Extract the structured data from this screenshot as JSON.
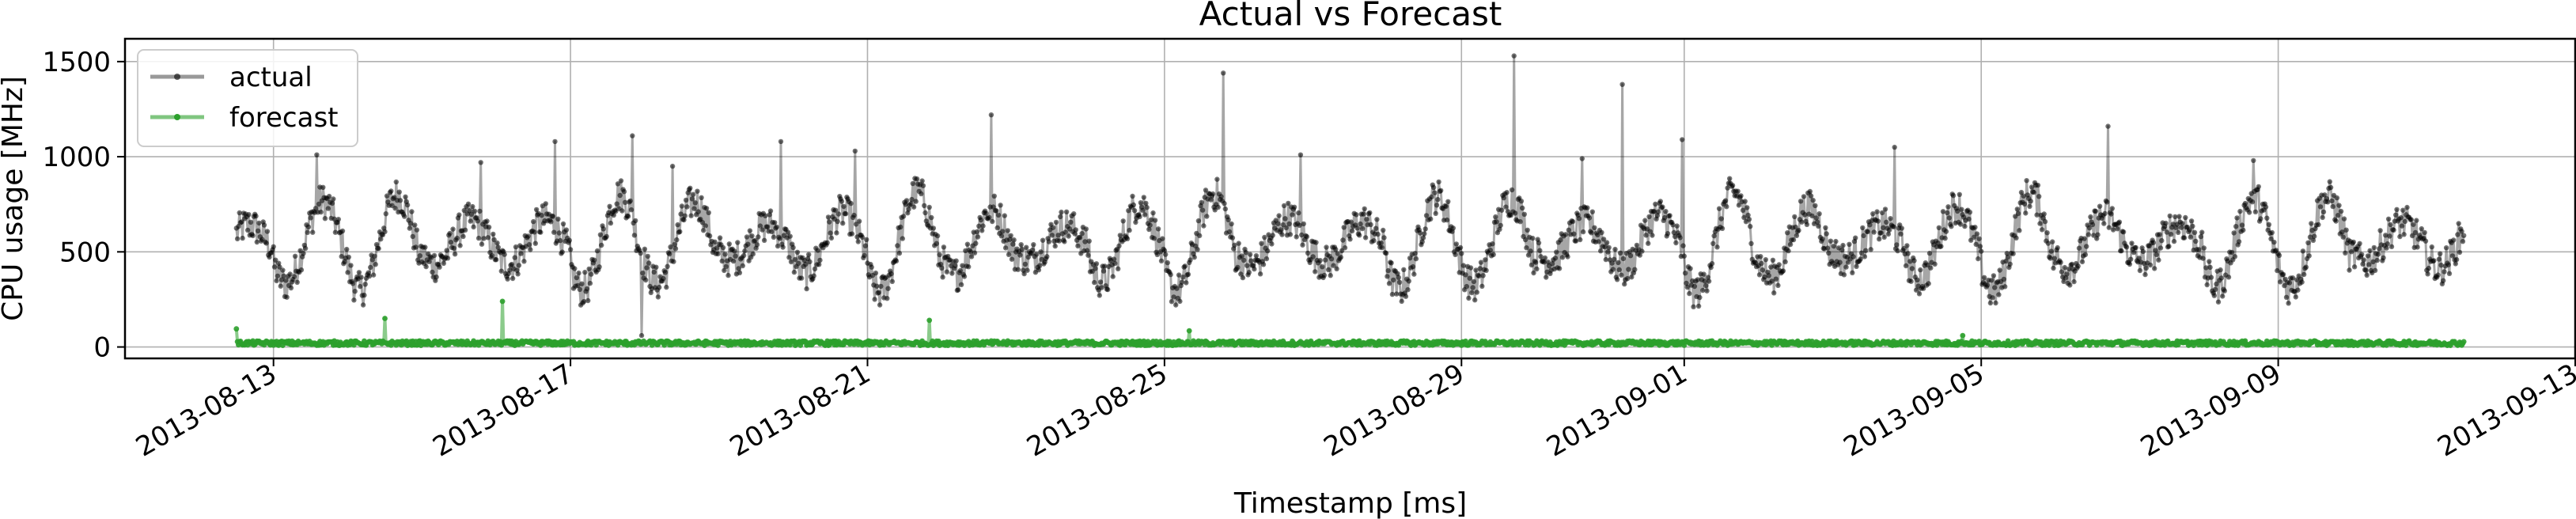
{
  "chart_data": {
    "type": "line",
    "title": "Actual vs Forecast",
    "xlabel": "Timestamp [ms]",
    "ylabel": "CPU usage [MHz]",
    "x_range": [
      "2013-08-11T00:00",
      "2013-09-13T00:00"
    ],
    "ylim": [
      -60,
      1620
    ],
    "x_ticks": [
      "2013-08-13",
      "2013-08-17",
      "2013-08-21",
      "2013-08-25",
      "2013-08-29",
      "2013-09-01",
      "2013-09-05",
      "2013-09-09",
      "2013-09-13"
    ],
    "y_ticks": [
      0,
      500,
      1000,
      1500
    ],
    "grid": true,
    "legend_position": "top-left",
    "series": [
      {
        "name": "actual",
        "color": "#000000",
        "start": "2013-08-12T12:00",
        "end": "2013-09-11T12:00",
        "pattern": "daily-cycle",
        "base_mean": 550,
        "daily_amplitude": 220,
        "range_min": 200,
        "range_max": 1100,
        "spikes": [
          {
            "date": "2013-08-13T14:00",
            "value": 1010
          },
          {
            "date": "2013-08-15T19:00",
            "value": 970
          },
          {
            "date": "2013-08-16T19:00",
            "value": 1080
          },
          {
            "date": "2013-08-17T20:00",
            "value": 1110
          },
          {
            "date": "2013-08-18T09:00",
            "value": 950
          },
          {
            "date": "2013-08-19T20:00",
            "value": 1080
          },
          {
            "date": "2013-08-20T20:00",
            "value": 1030
          },
          {
            "date": "2013-08-22T16:00",
            "value": 1220
          },
          {
            "date": "2013-08-25T19:00",
            "value": 1440
          },
          {
            "date": "2013-08-26T20:00",
            "value": 1010
          },
          {
            "date": "2013-08-29T17:00",
            "value": 1530
          },
          {
            "date": "2013-08-30T15:00",
            "value": 990
          },
          {
            "date": "2013-08-31T04:00",
            "value": 1380
          },
          {
            "date": "2013-08-31T23:30",
            "value": 1090
          },
          {
            "date": "2013-09-03T20:00",
            "value": 1050
          },
          {
            "date": "2013-09-06T17:00",
            "value": 1160
          },
          {
            "date": "2013-09-08T16:00",
            "value": 980
          }
        ],
        "dips": [
          {
            "date": "2013-08-17T23:00",
            "value": 60
          }
        ]
      },
      {
        "name": "forecast",
        "color": "#2ca02c",
        "start": "2013-08-12T12:00",
        "end": "2013-09-11T12:00",
        "pattern": "flat",
        "base_mean": 20,
        "range_min": 0,
        "range_max": 40,
        "spikes": [
          {
            "date": "2013-08-12T12:00",
            "value": 95
          },
          {
            "date": "2013-08-14T12:00",
            "value": 150
          },
          {
            "date": "2013-08-16T02:00",
            "value": 240
          },
          {
            "date": "2013-08-21T20:00",
            "value": 140
          },
          {
            "date": "2013-08-25T08:00",
            "value": 85
          },
          {
            "date": "2013-09-04T18:00",
            "value": 60
          }
        ]
      }
    ]
  }
}
